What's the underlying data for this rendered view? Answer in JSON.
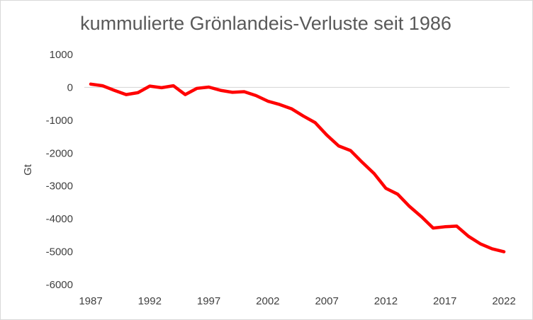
{
  "chart_data": {
    "type": "line",
    "title": "kummulierte Grönlandeis-Verluste seit 1986",
    "xlabel": "",
    "ylabel": "Gt",
    "ylim": [
      -6000,
      1000
    ],
    "xlim": [
      1987,
      2022
    ],
    "yticks": [
      1000,
      0,
      -1000,
      -2000,
      -3000,
      -4000,
      -5000,
      -6000
    ],
    "ytick_labels": [
      "1000",
      "0",
      "-1000",
      "-2000",
      "-3000",
      "-4000",
      "-5000",
      "-6000"
    ],
    "xticks": [
      1987,
      1992,
      1997,
      2002,
      2007,
      2012,
      2017,
      2022
    ],
    "xtick_labels": [
      "1987",
      "1992",
      "1997",
      "2002",
      "2007",
      "2012",
      "2017",
      "2022"
    ],
    "grid": false,
    "legend": false,
    "series": [
      {
        "color": "#ff0000",
        "x": [
          1987,
          1988,
          1989,
          1990,
          1991,
          1992,
          1993,
          1994,
          1995,
          1996,
          1997,
          1998,
          1999,
          2000,
          2001,
          2002,
          2003,
          2004,
          2005,
          2006,
          2007,
          2008,
          2009,
          2010,
          2011,
          2012,
          2013,
          2014,
          2015,
          2016,
          2017,
          2018,
          2019,
          2020,
          2021,
          2022
        ],
        "y": [
          100,
          50,
          -90,
          -220,
          -160,
          40,
          -10,
          50,
          -220,
          -30,
          10,
          -90,
          -150,
          -130,
          -250,
          -420,
          -520,
          -650,
          -870,
          -1070,
          -1450,
          -1780,
          -1920,
          -2280,
          -2620,
          -3070,
          -3250,
          -3620,
          -3930,
          -4280,
          -4240,
          -4220,
          -4530,
          -4760,
          -4910,
          -5000
        ]
      }
    ]
  }
}
